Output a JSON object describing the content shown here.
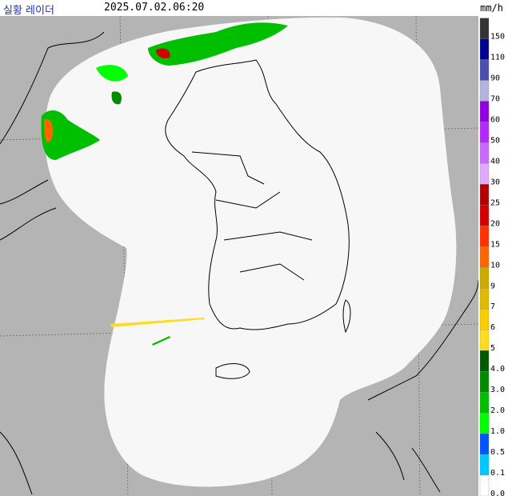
{
  "header": {
    "title": "실황 레이더",
    "time": "2025.07.02.06:20"
  },
  "legend": {
    "unit": "mm/h",
    "items": [
      {
        "label": "150",
        "color": "#333333"
      },
      {
        "label": "110",
        "color": "#000390"
      },
      {
        "label": "90",
        "color": "#4c4eb1"
      },
      {
        "label": "70",
        "color": "#b3b4de"
      },
      {
        "label": "60",
        "color": "#9300e4"
      },
      {
        "label": "50",
        "color": "#b329ff"
      },
      {
        "label": "40",
        "color": "#c969ff"
      },
      {
        "label": "30",
        "color": "#dfa9ff"
      },
      {
        "label": "25",
        "color": "#b40000"
      },
      {
        "label": "20",
        "color": "#d20000"
      },
      {
        "label": "15",
        "color": "#ff3200"
      },
      {
        "label": "10",
        "color": "#ff6600"
      },
      {
        "label": "9",
        "color": "#ccaa00"
      },
      {
        "label": "7",
        "color": "#e0b900"
      },
      {
        "label": "6",
        "color": "#f9cd00"
      },
      {
        "label": "5",
        "color": "#ffdc1f"
      },
      {
        "label": "4.0",
        "color": "#005a00"
      },
      {
        "label": "3.0",
        "color": "#008c00"
      },
      {
        "label": "2.0",
        "color": "#00be00"
      },
      {
        "label": "1.0",
        "color": "#00ff00"
      },
      {
        "label": "0.5",
        "color": "#0055ff"
      },
      {
        "label": "0.1",
        "color": "#00c8ff"
      },
      {
        "label": "0.0",
        "color": "#ffffff"
      }
    ]
  }
}
